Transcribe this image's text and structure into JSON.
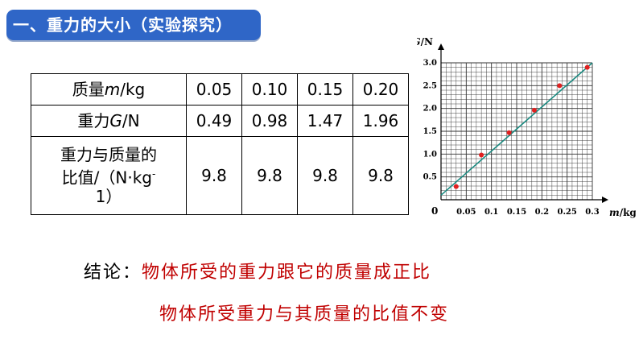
{
  "title": "一、重力的大小（实验探究）",
  "table": {
    "header_mass_prefix": "质量",
    "header_mass_symbol": "m",
    "header_mass_unit": "/kg",
    "masses": [
      "0.05",
      "0.10",
      "0.15",
      "0.20"
    ],
    "header_gravity_prefix": "重力",
    "header_gravity_symbol": "G",
    "header_gravity_unit": "/N",
    "gravities": [
      "0.49",
      "0.98",
      "1.47",
      "1.96"
    ],
    "ratio_line1": "重力与质量的",
    "ratio_line2": "比值/（N·kg",
    "ratio_sup": "-",
    "ratio_line3": "1）",
    "ratios": [
      "9.8",
      "9.8",
      "9.8",
      "9.8"
    ]
  },
  "chart_data": {
    "type": "scatter",
    "ylabel_symbol": "G",
    "ylabel_unit": "/N",
    "xlabel_symbol": "m",
    "xlabel_unit": "/kg",
    "origin_label": "0",
    "x_ticks": [
      "0.05",
      "0.1",
      "0.15",
      "0.2",
      "0.25",
      "0.3"
    ],
    "y_ticks": [
      "0.5",
      "1.0",
      "1.5",
      "2.0",
      "2.5",
      "3.0"
    ],
    "xlim": [
      0,
      0.3
    ],
    "ylim": [
      0,
      3.0
    ],
    "grid": true,
    "points": [
      {
        "x": 0.03,
        "y": 0.29
      },
      {
        "x": 0.08,
        "y": 0.98
      },
      {
        "x": 0.135,
        "y": 1.47
      },
      {
        "x": 0.185,
        "y": 1.96
      },
      {
        "x": 0.235,
        "y": 2.5
      },
      {
        "x": 0.29,
        "y": 2.9
      }
    ],
    "fit_line": {
      "x": [
        0.0,
        0.3
      ],
      "y": [
        0.1,
        3.0
      ]
    },
    "point_color": "#e02020",
    "line_color": "#1a8a80"
  },
  "conclusion": {
    "label": "结论：",
    "line1": "物体所受的重力跟它的质量成正比",
    "line2": "物体所受重力与其质量的比值不变"
  }
}
